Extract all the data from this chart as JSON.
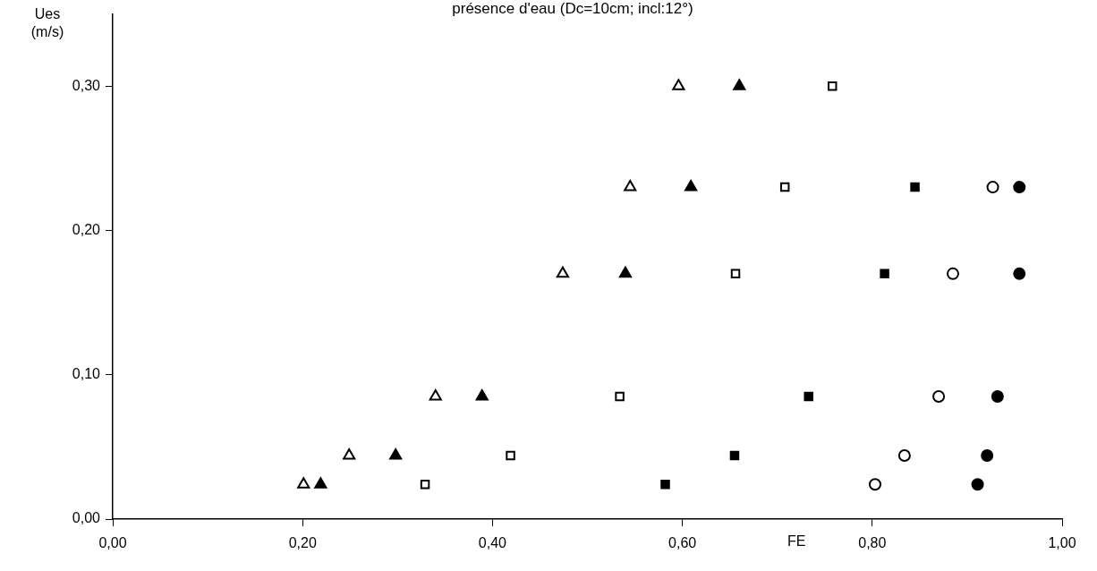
{
  "chart_data": {
    "type": "scatter",
    "title": "présence d'eau (Dc=10cm; incl:12°)",
    "xlabel": "FE",
    "ylabel": "Ues (m/s)",
    "xlim": [
      0,
      1
    ],
    "ylim": [
      0,
      0.35
    ],
    "xticks": [
      {
        "value": 0,
        "label": "0,00"
      },
      {
        "value": 0.2,
        "label": "0,20"
      },
      {
        "value": 0.4,
        "label": "0,40"
      },
      {
        "value": 0.6,
        "label": "0,60"
      },
      {
        "value": 0.8,
        "label": "0,80"
      },
      {
        "value": 1,
        "label": "1,00"
      }
    ],
    "yticks": [
      {
        "value": 0,
        "label": "0,00"
      },
      {
        "value": 0.1,
        "label": "0,10"
      },
      {
        "value": 0.2,
        "label": "0,20"
      },
      {
        "value": 0.3,
        "label": "0,30"
      }
    ],
    "grid": false,
    "legend": false,
    "series": [
      {
        "color": "#000000",
        "marker": "triangle",
        "x": [
          0.201,
          0.249,
          0.34,
          0.474,
          0.545,
          0.596
        ],
        "values": [
          0.024,
          0.044,
          0.085,
          0.17,
          0.23,
          0.3
        ]
      },
      {
        "color": "#000000",
        "marker": "triangle",
        "x": [
          0.219,
          0.298,
          0.389,
          0.54,
          0.609,
          0.66
        ],
        "values": [
          0.024,
          0.044,
          0.085,
          0.17,
          0.23,
          0.3
        ]
      },
      {
        "color": "#000000",
        "marker": "square",
        "x": [
          0.329,
          0.419,
          0.534,
          0.656,
          0.708,
          0.758
        ],
        "values": [
          0.024,
          0.044,
          0.085,
          0.17,
          0.23,
          0.3
        ]
      },
      {
        "color": "#000000",
        "marker": "square",
        "x": [
          0.582,
          0.655,
          0.733,
          0.813,
          0.845
        ],
        "values": [
          0.024,
          0.044,
          0.085,
          0.17,
          0.23
        ]
      },
      {
        "color": "#000000",
        "marker": "circle",
        "x": [
          0.803,
          0.834,
          0.87,
          0.885,
          0.927
        ],
        "values": [
          0.024,
          0.044,
          0.085,
          0.17,
          0.23
        ]
      },
      {
        "color": "#000000",
        "marker": "circle",
        "x": [
          0.911,
          0.921,
          0.932,
          0.955,
          0.955
        ],
        "values": [
          0.024,
          0.044,
          0.085,
          0.17,
          0.23
        ]
      }
    ]
  }
}
